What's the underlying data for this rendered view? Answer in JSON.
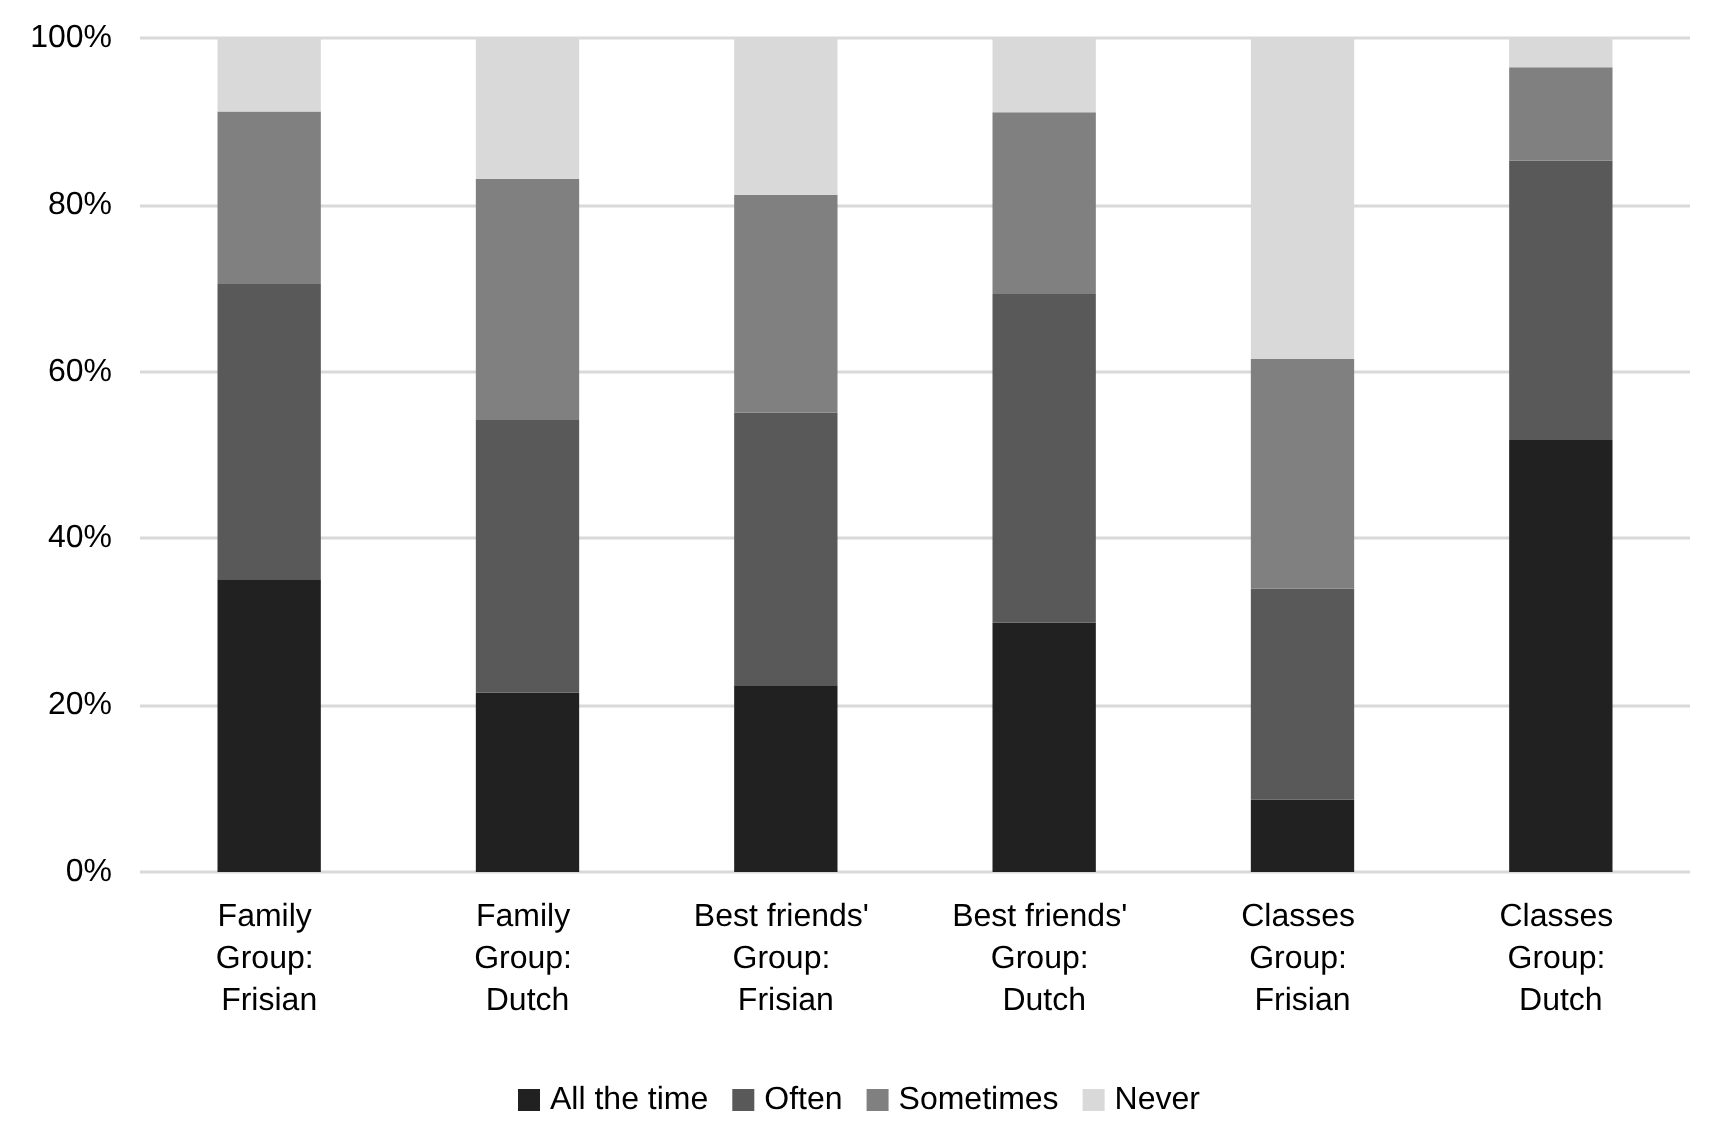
{
  "chart_data": {
    "type": "bar",
    "stacked": true,
    "categories": [
      "Family Group: Frisian",
      "Family Group: Dutch",
      "Best friends' Group: Frisian",
      "Best friends' Group: Dutch",
      "Classes Group: Frisian",
      "Classes Group: Dutch"
    ],
    "series": [
      {
        "name": "All the time",
        "color": "#212121",
        "values": [
          35.1,
          21.5,
          22.4,
          29.9,
          8.7,
          51.8
        ]
      },
      {
        "name": "Often",
        "color": "#595959",
        "values": [
          35.4,
          32.7,
          32.7,
          39.4,
          25.3,
          33.5
        ]
      },
      {
        "name": "Sometimes",
        "color": "#808080",
        "values": [
          20.7,
          28.9,
          26.1,
          21.8,
          27.5,
          11.2
        ]
      },
      {
        "name": "Never",
        "color": "#d9d9d9",
        "values": [
          8.8,
          16.9,
          18.8,
          8.9,
          38.5,
          3.5
        ]
      }
    ],
    "ylim": [
      0,
      100
    ],
    "yticks": [
      {
        "value": 0,
        "label": "0%"
      },
      {
        "value": 20,
        "label": "20%"
      },
      {
        "value": 40,
        "label": "40%"
      },
      {
        "value": 60,
        "label": "60%"
      },
      {
        "value": 80,
        "label": "80%"
      },
      {
        "value": 100,
        "label": "100%"
      }
    ],
    "grid": "y",
    "legend": "bottom"
  }
}
